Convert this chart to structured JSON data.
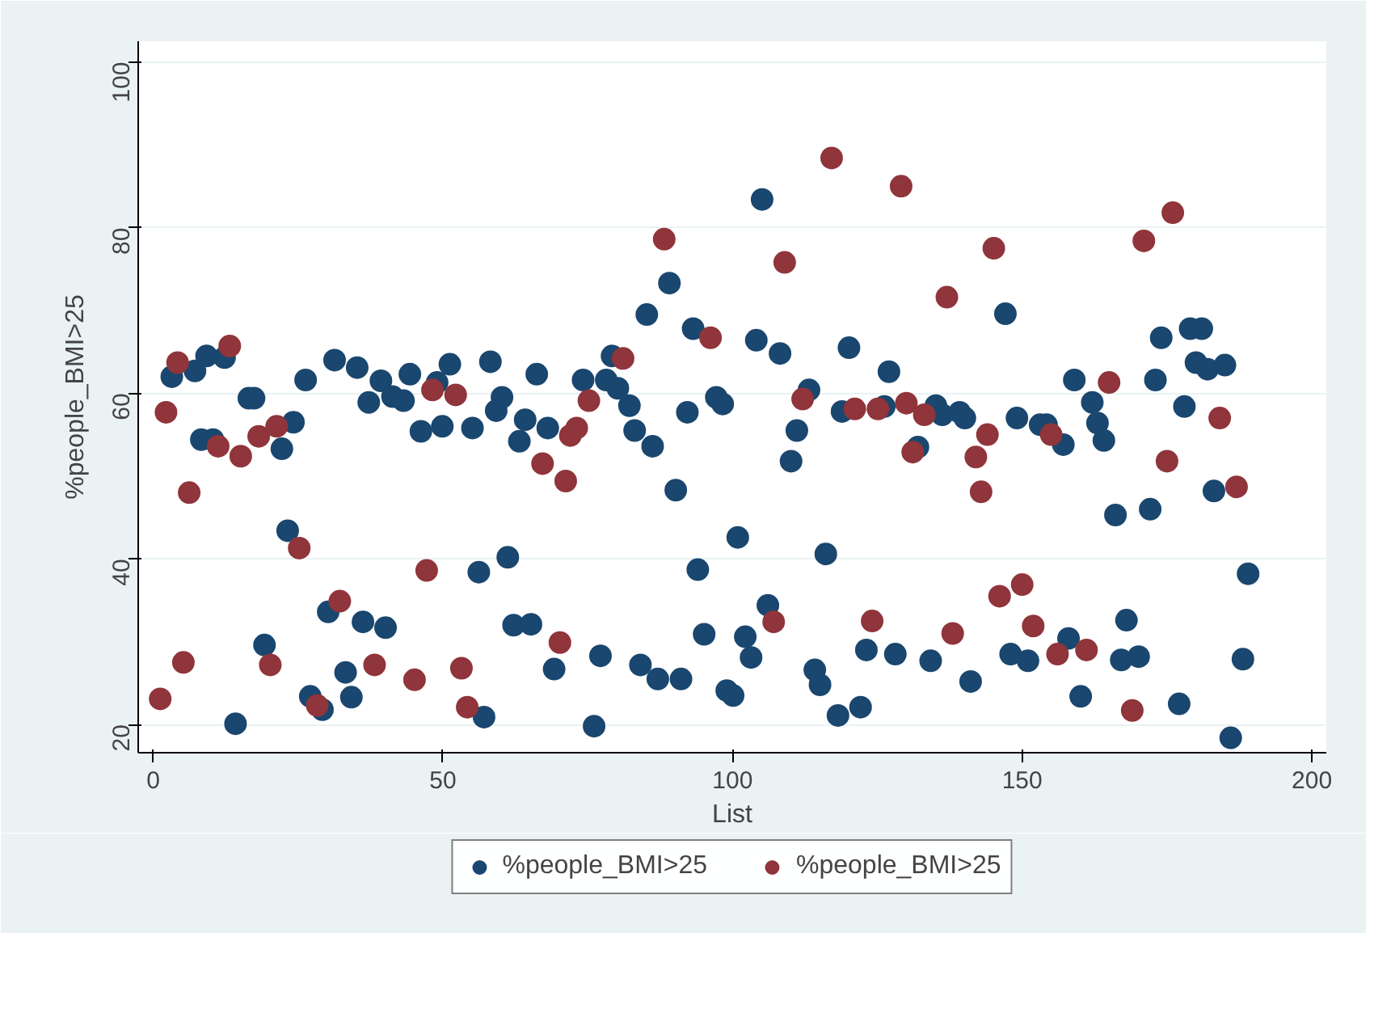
{
  "chart_data": {
    "type": "scatter",
    "xlabel": "List",
    "ylabel": "%people_BMI>25",
    "xlim": [
      -2.6,
      202.5
    ],
    "ylim": [
      16.6,
      102.5
    ],
    "xticks": [
      0,
      50,
      100,
      150,
      200
    ],
    "yticks": [
      20,
      40,
      60,
      80,
      100
    ],
    "grid": "y",
    "legend": "bottom",
    "marker": "circle",
    "series": [
      {
        "name": "%people_BMI>25",
        "color": "#1a476f",
        "x": [
          3.2,
          7.2,
          9.2,
          12.3,
          8.3,
          10.3,
          16.5,
          17.4,
          14.2,
          23.2,
          24.2,
          22.2,
          26.3,
          31.3,
          35.2,
          39.3,
          41.3,
          43.2,
          44.3,
          37.2,
          46.2,
          51.2,
          49.9,
          49.0,
          19.2,
          30.2,
          36.2,
          40.1,
          33.2,
          27.1,
          29.2,
          34.2,
          58.2,
          66.2,
          74.2,
          79.2,
          78.2,
          80.2,
          82.2,
          85.2,
          89.1,
          93.2,
          97.2,
          98.3,
          60.2,
          59.2,
          64.2,
          63.2,
          55.1,
          68.1,
          83.1,
          86.2,
          92.2,
          90.2,
          100.9,
          61.2,
          56.2,
          94.0,
          62.2,
          65.2,
          95.1,
          102.2,
          77.2,
          69.2,
          84.1,
          87.1,
          91.1,
          99.0,
          100.1,
          57.1,
          76.1,
          105.1,
          104.1,
          108.2,
          120.1,
          127.0,
          147.1,
          113.2,
          111.1,
          110.1,
          118.9,
          126.2,
          132.0,
          135.1,
          136.2,
          139.2,
          140.1,
          149.1,
          153.1,
          154.2,
          116.1,
          106.1,
          103.2,
          114.2,
          115.1,
          123.1,
          128.1,
          134.2,
          141.1,
          148.0,
          151.0,
          118.2,
          122.1,
          159.0,
          173.0,
          174.0,
          179.0,
          181.0,
          180.0,
          182.0,
          185.0,
          162.1,
          178.0,
          163.0,
          164.1,
          157.1,
          183.1,
          166.1,
          172.1,
          189.0,
          168.0,
          158.0,
          167.1,
          170.1,
          188.1,
          160.1,
          177.1,
          186.0
        ],
        "values": [
          62.0,
          62.7,
          64.5,
          64.3,
          54.4,
          54.4,
          59.4,
          59.4,
          20.1,
          43.4,
          56.5,
          53.3,
          61.6,
          64.0,
          63.1,
          61.5,
          59.6,
          59.1,
          62.3,
          58.9,
          55.4,
          63.5,
          56.0,
          61.3,
          29.6,
          33.6,
          32.4,
          31.7,
          26.3,
          23.4,
          21.8,
          23.3,
          63.8,
          62.3,
          61.6,
          64.5,
          61.6,
          60.6,
          58.5,
          69.5,
          73.3,
          67.8,
          59.5,
          58.7,
          59.5,
          57.9,
          56.8,
          54.2,
          55.8,
          55.8,
          55.5,
          53.6,
          57.7,
          48.3,
          42.6,
          40.2,
          38.4,
          38.7,
          32.0,
          32.1,
          30.9,
          30.6,
          28.3,
          26.7,
          27.2,
          25.5,
          25.5,
          24.1,
          23.5,
          20.9,
          19.8,
          83.4,
          66.4,
          64.8,
          65.5,
          62.6,
          69.6,
          60.4,
          55.5,
          51.8,
          57.8,
          58.4,
          53.5,
          58.5,
          57.4,
          57.7,
          57.0,
          57.0,
          56.2,
          56.2,
          40.6,
          34.4,
          28.1,
          26.6,
          24.8,
          29.0,
          28.5,
          27.7,
          25.2,
          28.5,
          27.7,
          21.1,
          22.1,
          61.6,
          61.6,
          66.7,
          67.8,
          67.8,
          63.7,
          62.9,
          63.4,
          58.9,
          58.4,
          56.4,
          54.3,
          53.8,
          48.2,
          45.3,
          46.0,
          38.2,
          32.6,
          30.4,
          27.8,
          28.2,
          27.9,
          23.4,
          22.5,
          18.4
        ]
      },
      {
        "name": "%people_BMI>25",
        "color": "#90353b",
        "x": [
          4.2,
          13.2,
          2.2,
          11.2,
          15.1,
          18.2,
          21.3,
          6.2,
          25.2,
          32.2,
          47.2,
          5.2,
          1.2,
          20.2,
          38.2,
          45.1,
          28.3,
          48.2,
          88.2,
          96.2,
          81.1,
          52.2,
          75.2,
          73.1,
          72.0,
          67.2,
          71.2,
          70.2,
          53.2,
          54.2,
          117.1,
          129.1,
          109.0,
          145.1,
          137.0,
          112.1,
          121.1,
          125.1,
          130.0,
          133.1,
          131.1,
          144.0,
          142.0,
          142.9,
          107.1,
          124.1,
          138.0,
          146.1,
          150.0,
          151.9,
          176.0,
          171.0,
          165.0,
          184.1,
          155.0,
          175.0,
          187.0,
          156.1,
          161.1,
          169.0
        ],
        "values": [
          63.7,
          65.7,
          57.7,
          53.6,
          52.4,
          54.8,
          56.0,
          48.0,
          41.3,
          34.9,
          38.6,
          27.5,
          23.1,
          27.2,
          27.2,
          25.4,
          22.3,
          60.4,
          78.6,
          66.7,
          64.2,
          59.8,
          59.1,
          55.8,
          54.9,
          51.5,
          49.4,
          29.9,
          26.8,
          22.1,
          88.4,
          85.0,
          75.8,
          77.5,
          71.6,
          59.3,
          58.1,
          58.1,
          58.8,
          57.4,
          52.9,
          55.0,
          52.3,
          48.1,
          32.4,
          32.5,
          31.0,
          35.5,
          36.9,
          31.9,
          81.8,
          78.4,
          61.3,
          57.0,
          55.0,
          51.8,
          48.7,
          28.5,
          29.0,
          21.7
        ]
      }
    ]
  }
}
